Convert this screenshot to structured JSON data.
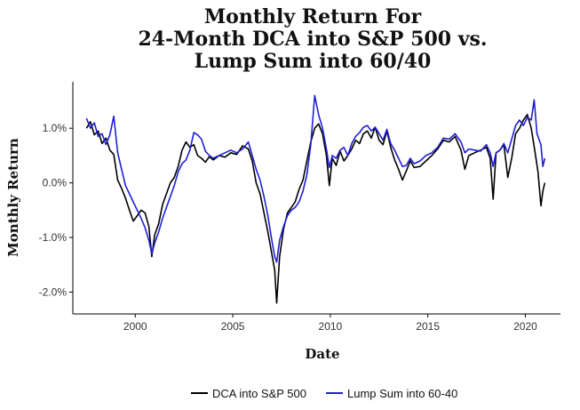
{
  "chart_data": {
    "type": "line",
    "title_lines": [
      "Monthly Return For",
      "24-Month DCA into S&P 500 vs.",
      "Lump Sum into 60/40"
    ],
    "xlabel": "Date",
    "ylabel": "Monthly Return",
    "xlim": [
      1996.8,
      2021.8
    ],
    "ylim": [
      -2.4,
      1.85
    ],
    "x_ticks": [
      2000,
      2005,
      2010,
      2015,
      2020
    ],
    "x_tick_labels": [
      "2000",
      "2005",
      "2010",
      "2015",
      "2020"
    ],
    "y_ticks": [
      1.0,
      0.0,
      -1.0,
      -2.0
    ],
    "y_tick_labels": [
      "1.0%",
      "0.0%",
      "-1.0%",
      "-2.0%"
    ],
    "legend_position": "bottom",
    "series": [
      {
        "name": "DCA into S&P 500",
        "color": "#000000",
        "points": [
          [
            1997.5,
            1.0
          ],
          [
            1997.7,
            1.12
          ],
          [
            1997.9,
            0.88
          ],
          [
            1998.1,
            0.95
          ],
          [
            1998.3,
            0.72
          ],
          [
            1998.5,
            0.82
          ],
          [
            1998.7,
            0.6
          ],
          [
            1998.9,
            0.52
          ],
          [
            1999.1,
            0.05
          ],
          [
            1999.3,
            -0.1
          ],
          [
            1999.5,
            -0.28
          ],
          [
            1999.7,
            -0.5
          ],
          [
            1999.9,
            -0.7
          ],
          [
            2000.1,
            -0.6
          ],
          [
            2000.3,
            -0.5
          ],
          [
            2000.5,
            -0.55
          ],
          [
            2000.7,
            -0.8
          ],
          [
            2000.85,
            -1.35
          ],
          [
            2001.0,
            -0.95
          ],
          [
            2001.2,
            -0.75
          ],
          [
            2001.4,
            -0.4
          ],
          [
            2001.6,
            -0.2
          ],
          [
            2001.8,
            0.0
          ],
          [
            2002.0,
            0.1
          ],
          [
            2002.2,
            0.3
          ],
          [
            2002.4,
            0.6
          ],
          [
            2002.6,
            0.75
          ],
          [
            2002.8,
            0.65
          ],
          [
            2003.0,
            0.7
          ],
          [
            2003.2,
            0.5
          ],
          [
            2003.4,
            0.45
          ],
          [
            2003.6,
            0.38
          ],
          [
            2003.8,
            0.48
          ],
          [
            2004.0,
            0.42
          ],
          [
            2004.3,
            0.5
          ],
          [
            2004.6,
            0.47
          ],
          [
            2004.9,
            0.55
          ],
          [
            2005.2,
            0.52
          ],
          [
            2005.5,
            0.68
          ],
          [
            2005.8,
            0.62
          ],
          [
            2006.0,
            0.4
          ],
          [
            2006.2,
            0.0
          ],
          [
            2006.4,
            -0.2
          ],
          [
            2006.6,
            -0.55
          ],
          [
            2006.8,
            -0.9
          ],
          [
            2007.0,
            -1.3
          ],
          [
            2007.15,
            -1.6
          ],
          [
            2007.25,
            -2.2
          ],
          [
            2007.4,
            -1.35
          ],
          [
            2007.6,
            -0.85
          ],
          [
            2007.8,
            -0.55
          ],
          [
            2008.0,
            -0.45
          ],
          [
            2008.2,
            -0.35
          ],
          [
            2008.4,
            -0.12
          ],
          [
            2008.6,
            0.05
          ],
          [
            2008.8,
            0.4
          ],
          [
            2009.0,
            0.75
          ],
          [
            2009.2,
            1.0
          ],
          [
            2009.4,
            1.08
          ],
          [
            2009.6,
            0.9
          ],
          [
            2009.8,
            0.5
          ],
          [
            2009.95,
            -0.05
          ],
          [
            2010.1,
            0.45
          ],
          [
            2010.3,
            0.32
          ],
          [
            2010.5,
            0.58
          ],
          [
            2010.7,
            0.4
          ],
          [
            2010.9,
            0.5
          ],
          [
            2011.1,
            0.62
          ],
          [
            2011.3,
            0.78
          ],
          [
            2011.5,
            0.72
          ],
          [
            2011.7,
            0.9
          ],
          [
            2011.9,
            0.95
          ],
          [
            2012.1,
            0.82
          ],
          [
            2012.3,
            1.02
          ],
          [
            2012.5,
            0.78
          ],
          [
            2012.7,
            0.7
          ],
          [
            2012.9,
            0.95
          ],
          [
            2013.1,
            0.65
          ],
          [
            2013.3,
            0.42
          ],
          [
            2013.5,
            0.25
          ],
          [
            2013.7,
            0.05
          ],
          [
            2013.9,
            0.22
          ],
          [
            2014.1,
            0.4
          ],
          [
            2014.3,
            0.28
          ],
          [
            2014.6,
            0.3
          ],
          [
            2014.9,
            0.4
          ],
          [
            2015.2,
            0.5
          ],
          [
            2015.5,
            0.62
          ],
          [
            2015.8,
            0.78
          ],
          [
            2016.1,
            0.75
          ],
          [
            2016.4,
            0.85
          ],
          [
            2016.7,
            0.6
          ],
          [
            2016.9,
            0.25
          ],
          [
            2017.1,
            0.5
          ],
          [
            2017.4,
            0.55
          ],
          [
            2017.7,
            0.6
          ],
          [
            2018.0,
            0.65
          ],
          [
            2018.2,
            0.45
          ],
          [
            2018.35,
            -0.3
          ],
          [
            2018.5,
            0.55
          ],
          [
            2018.7,
            0.6
          ],
          [
            2018.9,
            0.7
          ],
          [
            2019.1,
            0.1
          ],
          [
            2019.3,
            0.45
          ],
          [
            2019.5,
            0.9
          ],
          [
            2019.7,
            1.0
          ],
          [
            2019.9,
            1.15
          ],
          [
            2020.1,
            1.25
          ],
          [
            2020.3,
            1.0
          ],
          [
            2020.5,
            0.55
          ],
          [
            2020.65,
            0.2
          ],
          [
            2020.8,
            -0.42
          ],
          [
            2020.9,
            -0.15
          ],
          [
            2021.0,
            0.0
          ]
        ]
      },
      {
        "name": "Lump Sum into 60-40",
        "color": "#1f1fd6",
        "points": [
          [
            1997.5,
            1.18
          ],
          [
            1997.7,
            1.0
          ],
          [
            1997.9,
            1.1
          ],
          [
            1998.1,
            0.85
          ],
          [
            1998.3,
            0.9
          ],
          [
            1998.5,
            0.7
          ],
          [
            1998.7,
            0.88
          ],
          [
            1998.9,
            1.22
          ],
          [
            1999.1,
            0.55
          ],
          [
            1999.3,
            0.25
          ],
          [
            1999.5,
            -0.05
          ],
          [
            1999.7,
            -0.2
          ],
          [
            1999.9,
            -0.35
          ],
          [
            2000.1,
            -0.5
          ],
          [
            2000.3,
            -0.65
          ],
          [
            2000.5,
            -0.82
          ],
          [
            2000.7,
            -1.05
          ],
          [
            2000.85,
            -1.3
          ],
          [
            2001.0,
            -1.1
          ],
          [
            2001.2,
            -0.9
          ],
          [
            2001.4,
            -0.65
          ],
          [
            2001.6,
            -0.45
          ],
          [
            2001.8,
            -0.25
          ],
          [
            2002.0,
            -0.05
          ],
          [
            2002.2,
            0.2
          ],
          [
            2002.4,
            0.35
          ],
          [
            2002.6,
            0.42
          ],
          [
            2002.8,
            0.6
          ],
          [
            2003.0,
            0.92
          ],
          [
            2003.2,
            0.88
          ],
          [
            2003.4,
            0.8
          ],
          [
            2003.6,
            0.58
          ],
          [
            2003.8,
            0.5
          ],
          [
            2004.0,
            0.45
          ],
          [
            2004.3,
            0.5
          ],
          [
            2004.6,
            0.55
          ],
          [
            2004.9,
            0.6
          ],
          [
            2005.2,
            0.55
          ],
          [
            2005.5,
            0.62
          ],
          [
            2005.8,
            0.75
          ],
          [
            2006.0,
            0.5
          ],
          [
            2006.2,
            0.25
          ],
          [
            2006.4,
            0.05
          ],
          [
            2006.6,
            -0.25
          ],
          [
            2006.8,
            -0.6
          ],
          [
            2007.0,
            -1.05
          ],
          [
            2007.15,
            -1.35
          ],
          [
            2007.25,
            -1.45
          ],
          [
            2007.4,
            -1.05
          ],
          [
            2007.6,
            -0.8
          ],
          [
            2007.8,
            -0.6
          ],
          [
            2008.0,
            -0.5
          ],
          [
            2008.2,
            -0.45
          ],
          [
            2008.4,
            -0.35
          ],
          [
            2008.6,
            -0.15
          ],
          [
            2008.8,
            0.15
          ],
          [
            2009.0,
            0.7
          ],
          [
            2009.2,
            1.6
          ],
          [
            2009.4,
            1.25
          ],
          [
            2009.6,
            1.0
          ],
          [
            2009.8,
            0.62
          ],
          [
            2009.95,
            0.28
          ],
          [
            2010.1,
            0.5
          ],
          [
            2010.3,
            0.45
          ],
          [
            2010.5,
            0.6
          ],
          [
            2010.7,
            0.65
          ],
          [
            2010.9,
            0.5
          ],
          [
            2011.1,
            0.72
          ],
          [
            2011.3,
            0.85
          ],
          [
            2011.5,
            0.92
          ],
          [
            2011.7,
            1.02
          ],
          [
            2011.9,
            1.05
          ],
          [
            2012.1,
            0.95
          ],
          [
            2012.3,
            1.02
          ],
          [
            2012.5,
            0.9
          ],
          [
            2012.7,
            0.78
          ],
          [
            2012.9,
            0.98
          ],
          [
            2013.1,
            0.72
          ],
          [
            2013.3,
            0.6
          ],
          [
            2013.5,
            0.45
          ],
          [
            2013.7,
            0.3
          ],
          [
            2013.9,
            0.32
          ],
          [
            2014.1,
            0.45
          ],
          [
            2014.3,
            0.35
          ],
          [
            2014.6,
            0.4
          ],
          [
            2014.9,
            0.5
          ],
          [
            2015.2,
            0.55
          ],
          [
            2015.5,
            0.65
          ],
          [
            2015.8,
            0.82
          ],
          [
            2016.1,
            0.8
          ],
          [
            2016.4,
            0.9
          ],
          [
            2016.7,
            0.75
          ],
          [
            2016.9,
            0.55
          ],
          [
            2017.1,
            0.62
          ],
          [
            2017.4,
            0.6
          ],
          [
            2017.7,
            0.58
          ],
          [
            2018.0,
            0.7
          ],
          [
            2018.2,
            0.55
          ],
          [
            2018.35,
            0.3
          ],
          [
            2018.5,
            0.55
          ],
          [
            2018.7,
            0.6
          ],
          [
            2018.9,
            0.72
          ],
          [
            2019.1,
            0.55
          ],
          [
            2019.3,
            0.8
          ],
          [
            2019.5,
            1.05
          ],
          [
            2019.7,
            1.15
          ],
          [
            2019.9,
            1.05
          ],
          [
            2020.1,
            1.2
          ],
          [
            2020.3,
            1.15
          ],
          [
            2020.45,
            1.52
          ],
          [
            2020.6,
            0.9
          ],
          [
            2020.8,
            0.7
          ],
          [
            2020.9,
            0.3
          ],
          [
            2021.0,
            0.45
          ]
        ]
      }
    ]
  }
}
